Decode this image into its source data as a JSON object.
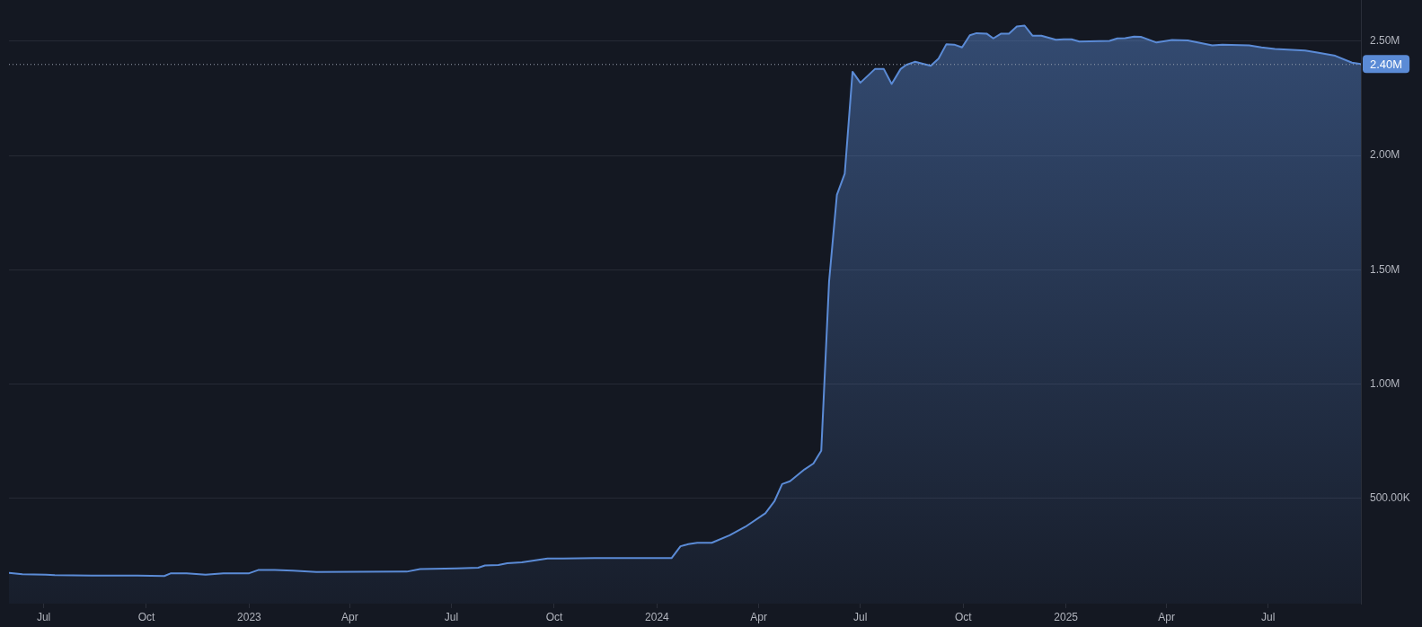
{
  "chart_data": {
    "type": "area",
    "color": "#5b8bd6",
    "x": [
      "2022-05-31",
      "2022-06-12",
      "2022-07-03",
      "2022-07-11",
      "2022-08-13",
      "2022-09-23",
      "2022-10-17",
      "2022-10-23",
      "2022-11-06",
      "2022-11-23",
      "2022-12-09",
      "2023-01-01",
      "2023-01-09",
      "2023-01-24",
      "2023-02-09",
      "2023-03-02",
      "2023-05-22",
      "2023-06-03",
      "2023-07-06",
      "2023-07-25",
      "2023-07-31",
      "2023-08-12",
      "2023-08-20",
      "2023-09-02",
      "2023-09-25",
      "2023-10-09",
      "2023-11-06",
      "2024-01-14",
      "2024-01-22",
      "2024-01-29",
      "2024-02-06",
      "2024-02-19",
      "2024-03-06",
      "2024-03-20",
      "2024-04-07",
      "2024-04-15",
      "2024-04-22",
      "2024-04-29",
      "2024-05-12",
      "2024-05-20",
      "2024-05-27",
      "2024-06-03",
      "2024-06-10",
      "2024-06-17",
      "2024-06-24",
      "2024-07-01",
      "2024-07-14",
      "2024-07-22",
      "2024-07-29",
      "2024-08-06",
      "2024-08-11",
      "2024-08-19",
      "2024-09-02",
      "2024-09-09",
      "2024-09-16",
      "2024-09-23",
      "2024-09-30",
      "2024-10-07",
      "2024-10-13",
      "2024-10-22",
      "2024-10-28",
      "2024-11-04",
      "2024-11-11",
      "2024-11-18",
      "2024-11-25",
      "2024-12-02",
      "2024-12-10",
      "2024-12-23",
      "2024-12-30",
      "2025-01-06",
      "2025-01-13",
      "2025-02-09",
      "2025-02-16",
      "2025-02-23",
      "2025-03-03",
      "2025-03-09",
      "2025-03-23",
      "2025-04-06",
      "2025-04-20",
      "2025-04-29",
      "2025-05-12",
      "2025-05-21",
      "2025-06-14",
      "2025-06-25",
      "2025-07-07",
      "2025-08-03",
      "2025-08-14",
      "2025-08-30",
      "2025-09-14",
      "2025-09-22"
    ],
    "values": [
      175000,
      169000,
      167000,
      165000,
      163000,
      163000,
      161000,
      173000,
      173000,
      167000,
      173000,
      173000,
      187000,
      187000,
      184000,
      178000,
      180000,
      191000,
      194000,
      197000,
      207000,
      209000,
      217000,
      221000,
      237000,
      237000,
      239000,
      239000,
      291000,
      300000,
      306000,
      306000,
      339000,
      376000,
      435000,
      487000,
      563000,
      575000,
      627000,
      653000,
      709000,
      1449000,
      1828000,
      1920000,
      2366000,
      2318000,
      2378000,
      2378000,
      2313000,
      2378000,
      2396000,
      2410000,
      2392000,
      2424000,
      2487000,
      2485000,
      2473000,
      2526000,
      2535000,
      2533000,
      2512000,
      2533000,
      2533000,
      2564000,
      2568000,
      2524000,
      2524000,
      2506000,
      2508000,
      2508000,
      2498000,
      2501000,
      2512000,
      2513000,
      2520000,
      2519000,
      2494000,
      2505000,
      2503000,
      2494000,
      2482000,
      2485000,
      2482000,
      2473000,
      2466000,
      2459000,
      2450000,
      2436000,
      2406000,
      2400000
    ],
    "xlim": [
      "2022-05-31",
      "2025-09-22"
    ],
    "xticks": [
      {
        "value": "2022-07-01",
        "label": "Jul"
      },
      {
        "value": "2022-10-01",
        "label": "Oct"
      },
      {
        "value": "2023-01-01",
        "label": "2023"
      },
      {
        "value": "2023-04-01",
        "label": "Apr"
      },
      {
        "value": "2023-07-01",
        "label": "Jul"
      },
      {
        "value": "2023-10-01",
        "label": "Oct"
      },
      {
        "value": "2024-01-01",
        "label": "2024"
      },
      {
        "value": "2024-04-01",
        "label": "Apr"
      },
      {
        "value": "2024-07-01",
        "label": "Jul"
      },
      {
        "value": "2024-10-01",
        "label": "Oct"
      },
      {
        "value": "2025-01-01",
        "label": "2025"
      },
      {
        "value": "2025-04-01",
        "label": "Apr"
      },
      {
        "value": "2025-07-01",
        "label": "Jul"
      }
    ],
    "ylim": [
      40000,
      2680000
    ],
    "yticks": [
      {
        "value": 500000,
        "label": "500.00K"
      },
      {
        "value": 1000000,
        "label": "1.00M"
      },
      {
        "value": 1500000,
        "label": "1.50M"
      },
      {
        "value": 2000000,
        "label": "2.00M"
      },
      {
        "value": 2500000,
        "label": "2.50M"
      }
    ],
    "grid": "y",
    "ref_lines": [
      {
        "axis": "y",
        "value": 2400000,
        "label": "2.40M",
        "color": "#9aa1b0",
        "line_style": "dotted"
      }
    ]
  }
}
